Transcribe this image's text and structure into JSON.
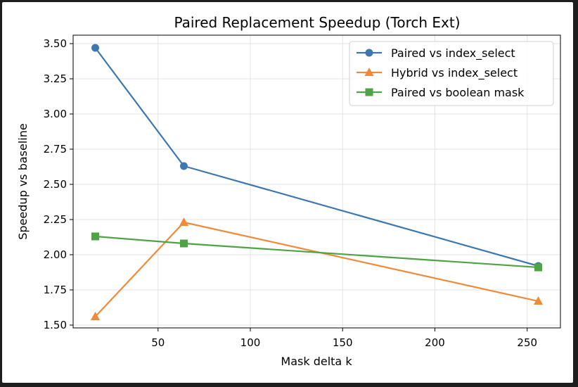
{
  "chart_data": {
    "type": "line",
    "title": "Paired Replacement Speedup (Torch Ext)",
    "xlabel": "Mask delta k",
    "ylabel": "Speedup vs baseline",
    "xlim": [
      4,
      268
    ],
    "ylim": [
      1.48,
      3.56
    ],
    "xticks": [
      50,
      100,
      150,
      200,
      250
    ],
    "yticks": [
      1.5,
      1.75,
      2.0,
      2.25,
      2.5,
      2.75,
      3.0,
      3.25,
      3.5
    ],
    "ytick_labels": [
      "1.50",
      "1.75",
      "2.00",
      "2.25",
      "2.50",
      "2.75",
      "3.00",
      "3.25",
      "3.50"
    ],
    "grid": true,
    "legend_position": "top-right",
    "x": [
      16,
      64,
      256
    ],
    "series": [
      {
        "name": "Paired vs index_select",
        "values": [
          3.47,
          2.63,
          1.92
        ],
        "color": "#3d77b0",
        "marker": "circle"
      },
      {
        "name": "Hybrid vs index_select",
        "values": [
          1.56,
          2.23,
          1.67
        ],
        "color": "#ef8a3a",
        "marker": "triangle"
      },
      {
        "name": "Paired vs boolean mask",
        "values": [
          2.13,
          2.08,
          1.91
        ],
        "color": "#4fa246",
        "marker": "square"
      }
    ]
  }
}
